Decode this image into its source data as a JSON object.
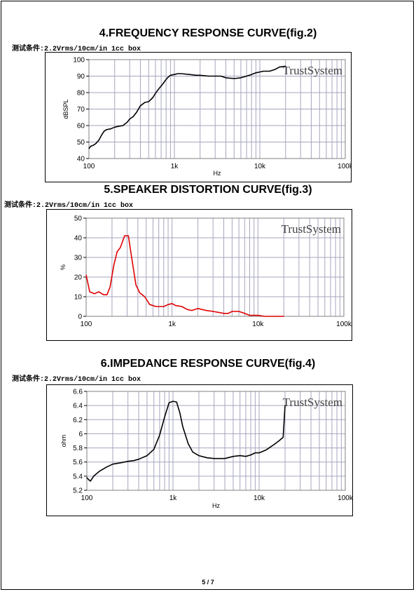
{
  "page": {
    "number": "5 / 7"
  },
  "sections": [
    {
      "title": "4.FREQUENCY RESPONSE CURVE(fig.2)",
      "condition": "测试条件:2.2Vrms/10cm/in 1cc box"
    },
    {
      "title": "5.SPEAKER DISTORTION CURVE(fig.3)",
      "condition": "测试条件:2.2Vrms/10cm/in 1cc box"
    },
    {
      "title": "6.IMPEDANCE RESPONSE CURVE(fig.4)",
      "condition": "测试条件:2.2Vrms/10cm/in 1cc box"
    }
  ],
  "chart_data": [
    {
      "type": "line",
      "title": "4.FREQUENCY RESPONSE CURVE(fig.2)",
      "xlabel": "Hz",
      "ylabel": "dBSPL",
      "xscale": "log",
      "xlim": [
        100,
        100000
      ],
      "ylim": [
        40,
        100
      ],
      "xticks": [
        100,
        1000,
        10000,
        100000
      ],
      "xtick_labels": [
        "100",
        "1k",
        "10k",
        "100k"
      ],
      "yticks": [
        40,
        50,
        60,
        70,
        80,
        90,
        100
      ],
      "ytick_labels": [
        "40",
        "50",
        "60",
        "70",
        "80",
        "90",
        "100"
      ],
      "grid": true,
      "watermark": "TrustSystem",
      "series": [
        {
          "color": "#000000",
          "x": [
            100,
            105,
            112,
            120,
            130,
            140,
            150,
            160,
            180,
            200,
            220,
            250,
            280,
            300,
            330,
            360,
            400,
            450,
            500,
            560,
            600,
            650,
            700,
            750,
            800,
            850,
            900,
            1000,
            1100,
            1200,
            1500,
            1800,
            2000,
            2500,
            3000,
            3500,
            4000,
            5000,
            6000,
            7000,
            8000,
            9000,
            10000,
            11000,
            12000,
            13000,
            15000,
            17000,
            20000
          ],
          "y": [
            46,
            47.5,
            48,
            49,
            51,
            54,
            56.5,
            57.5,
            58,
            59,
            59.5,
            60,
            62,
            64,
            65.5,
            68,
            72,
            74,
            74.5,
            77,
            79.5,
            82,
            84,
            86,
            88,
            89.5,
            90.5,
            91,
            91.5,
            91.5,
            91,
            90.5,
            90.5,
            90,
            90,
            90,
            89,
            88.5,
            89,
            90,
            91,
            92,
            92.5,
            93,
            93,
            93,
            94,
            95.5,
            96
          ]
        }
      ]
    },
    {
      "type": "line",
      "title": "5.SPEAKER DISTORTION CURVE(fig.3)",
      "xlabel": "",
      "ylabel": "%",
      "xscale": "log",
      "xlim": [
        100,
        100000
      ],
      "ylim": [
        0,
        50
      ],
      "xticks": [
        100,
        1000,
        10000,
        100000
      ],
      "xtick_labels": [
        "100",
        "1k",
        "10k",
        "100k"
      ],
      "yticks": [
        0,
        10,
        20,
        30,
        40,
        50
      ],
      "ytick_labels": [
        "0",
        "10",
        "20",
        "30",
        "40",
        "50"
      ],
      "grid": true,
      "watermark": "TrustSystem",
      "series": [
        {
          "color": "#e00000",
          "x": [
            100,
            110,
            125,
            140,
            160,
            175,
            190,
            210,
            230,
            250,
            280,
            310,
            350,
            380,
            420,
            480,
            550,
            650,
            800,
            900,
            1000,
            1100,
            1300,
            1500,
            1700,
            2000,
            2500,
            3000,
            3500,
            4000,
            4500,
            5000,
            6000,
            7000,
            8000,
            9000,
            10000,
            12000,
            15000,
            18000,
            20000
          ],
          "y": [
            21,
            12.5,
            11.5,
            12.5,
            11,
            11,
            15,
            26,
            33,
            35,
            41,
            41,
            26,
            16,
            12,
            10,
            6,
            5,
            5,
            6,
            6.5,
            5.5,
            5,
            3.5,
            3,
            4,
            3,
            2.5,
            2,
            1.5,
            1.5,
            2.5,
            2.5,
            1.5,
            0.5,
            0.5,
            0.5,
            0,
            0,
            0,
            0
          ]
        }
      ]
    },
    {
      "type": "line",
      "title": "6.IMPEDANCE RESPONSE CURVE(fig.4)",
      "xlabel": "Hz",
      "ylabel": "ohm",
      "xscale": "log",
      "xlim": [
        100,
        100000
      ],
      "ylim": [
        5.2,
        6.6
      ],
      "xticks": [
        100,
        1000,
        10000,
        100000
      ],
      "xtick_labels": [
        "100",
        "1k",
        "10k",
        "100k"
      ],
      "yticks": [
        5.2,
        5.4,
        5.6,
        5.8,
        6,
        6.2,
        6.4,
        6.6
      ],
      "ytick_labels": [
        "5.2",
        "5.4",
        "5.6",
        "5.8",
        "6",
        "6.2",
        "6.4",
        "6.6"
      ],
      "grid": true,
      "watermark": "TrustSystem",
      "series": [
        {
          "color": "#000000",
          "x": [
            100,
            105,
            110,
            120,
            140,
            170,
            200,
            250,
            300,
            350,
            400,
            500,
            600,
            700,
            800,
            900,
            1000,
            1100,
            1200,
            1300,
            1500,
            1700,
            2000,
            2500,
            3000,
            3500,
            4000,
            5000,
            6000,
            7000,
            8000,
            9000,
            10000,
            12000,
            15000,
            17000,
            19000,
            20000
          ],
          "y": [
            5.38,
            5.35,
            5.33,
            5.4,
            5.47,
            5.53,
            5.57,
            5.59,
            5.61,
            5.62,
            5.64,
            5.69,
            5.78,
            5.98,
            6.24,
            6.44,
            6.46,
            6.45,
            6.3,
            6.1,
            5.86,
            5.74,
            5.69,
            5.66,
            5.65,
            5.65,
            5.65,
            5.68,
            5.69,
            5.68,
            5.7,
            5.73,
            5.73,
            5.77,
            5.85,
            5.9,
            5.95,
            6.4
          ]
        }
      ]
    }
  ]
}
